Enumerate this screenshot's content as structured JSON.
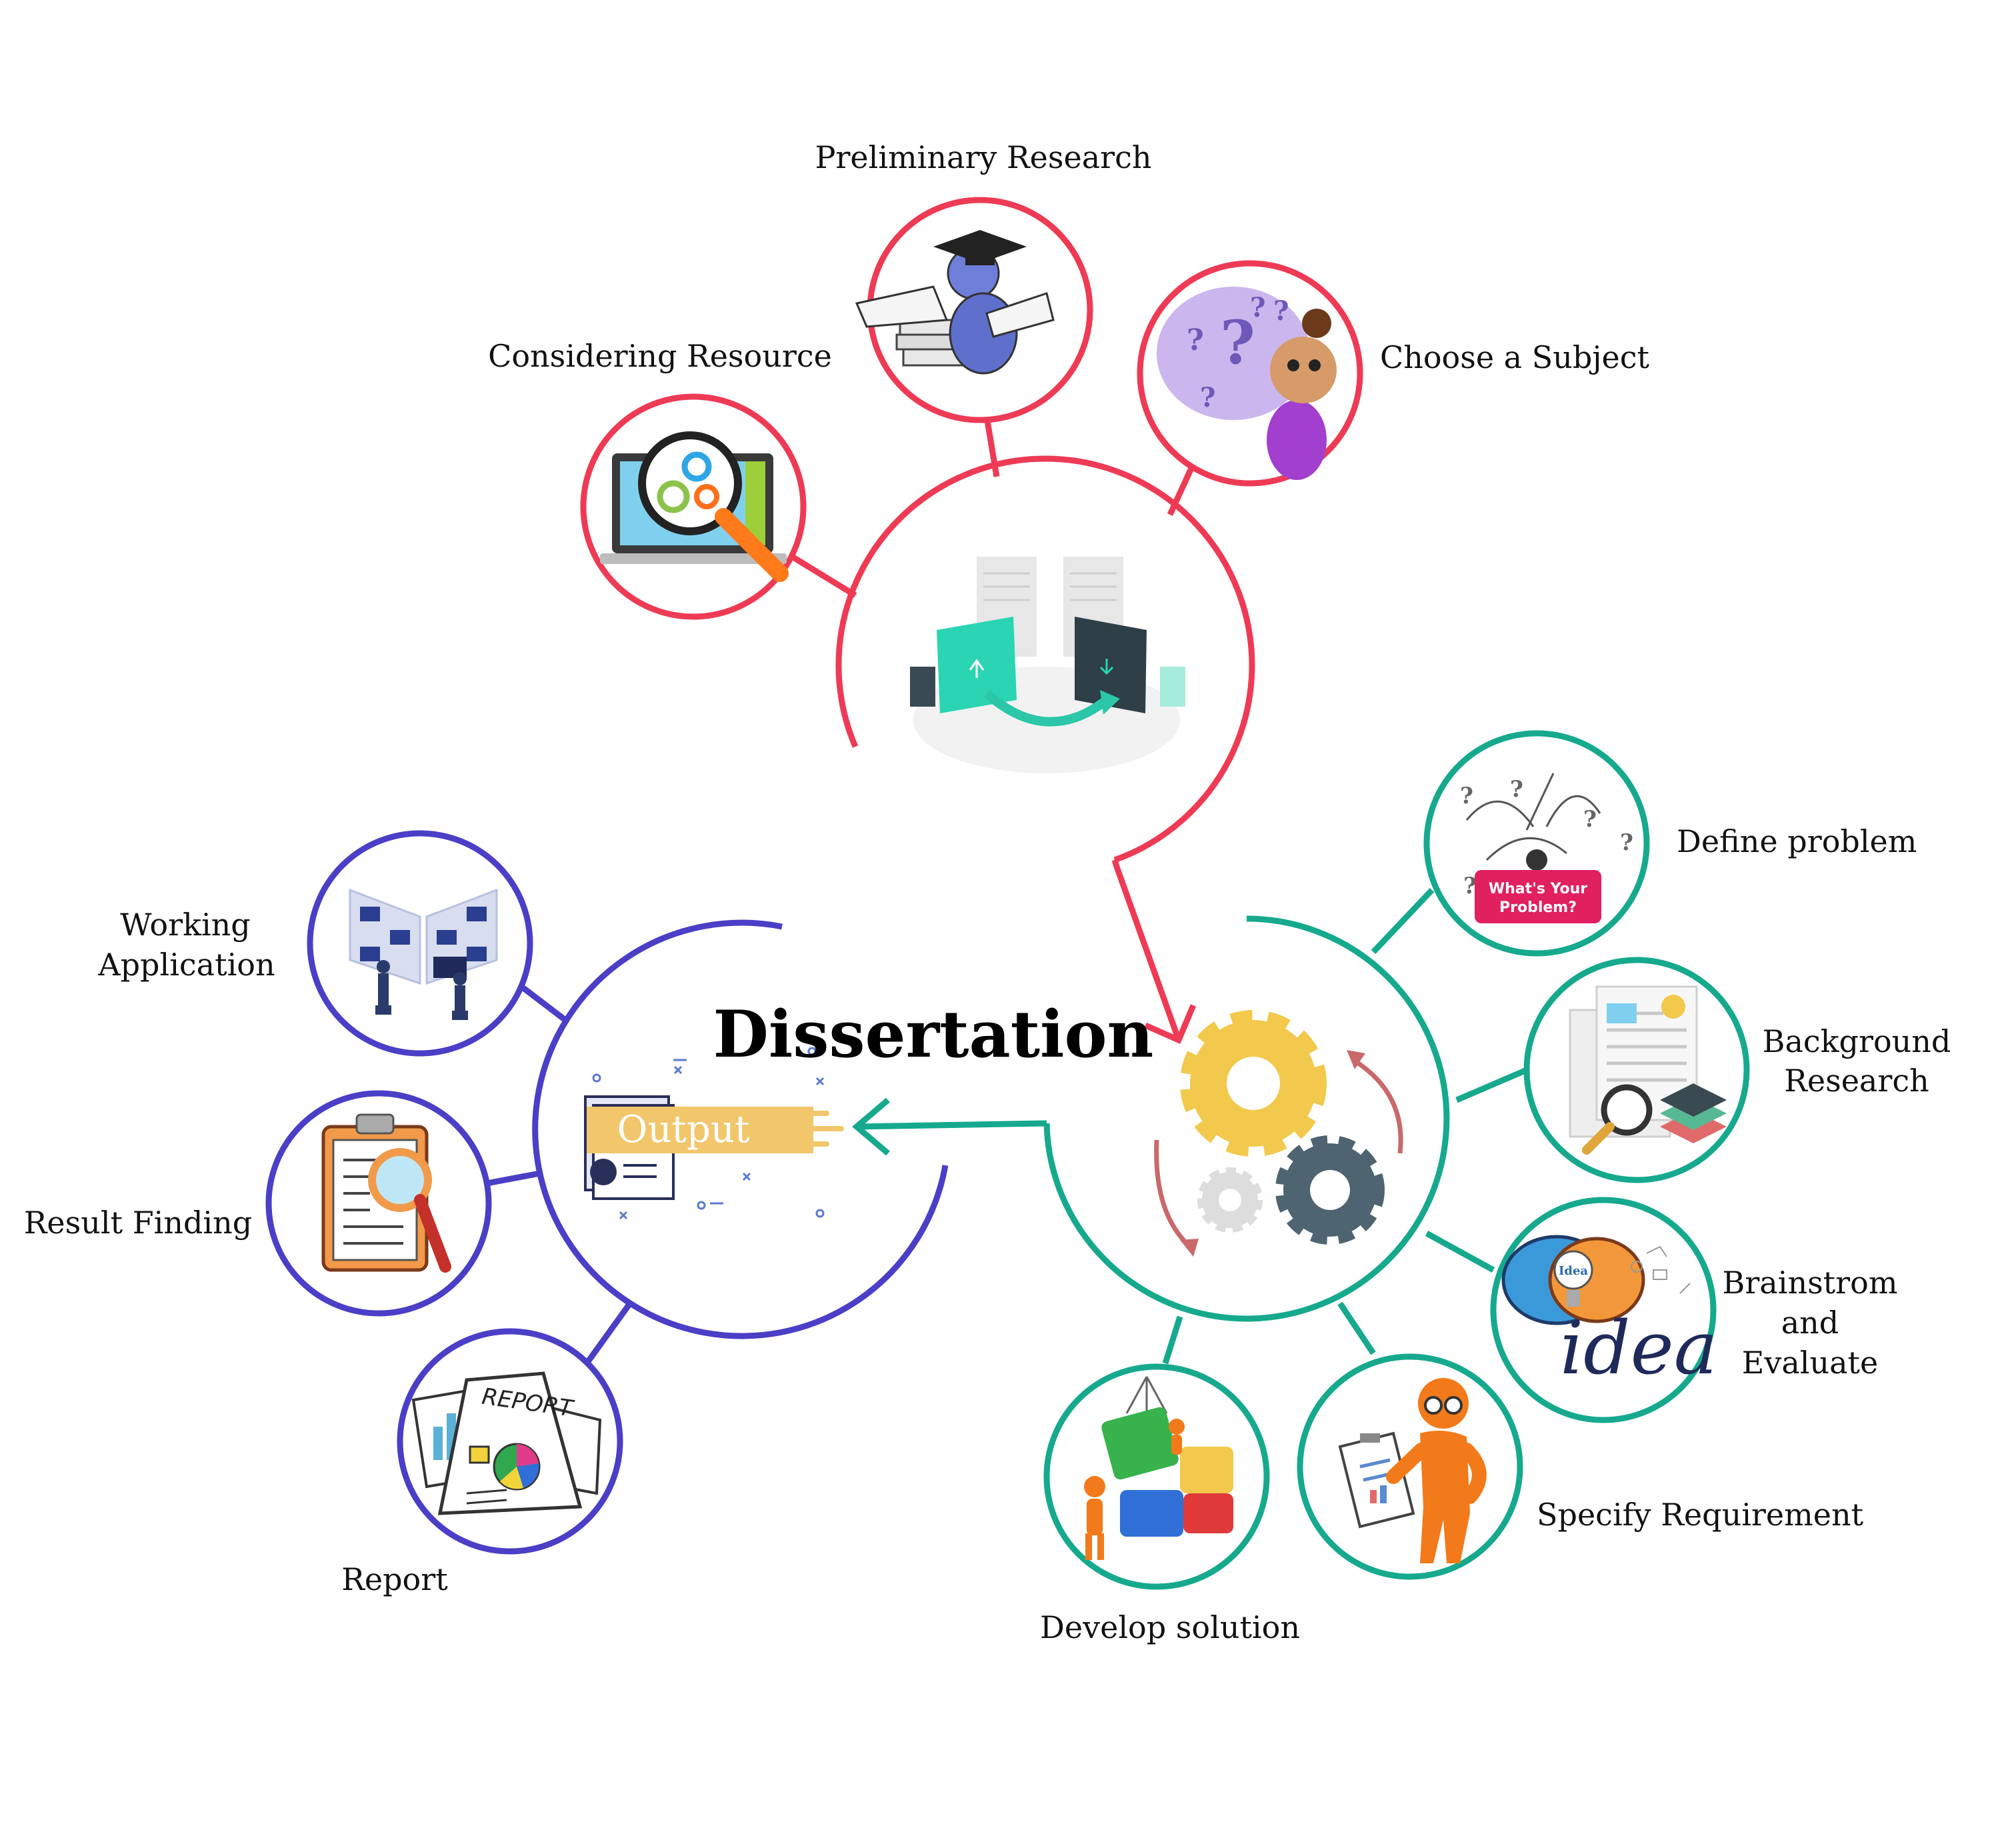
{
  "title": "Dissertation",
  "colors": {
    "research": "#ee3b55",
    "process": "#16a98e",
    "output": "#4a3fc6"
  },
  "hubs": {
    "research": {
      "icon": "folder-transfer-icon"
    },
    "process": {
      "icon": "gears-icon"
    },
    "output": {
      "icon": "output-document-icon",
      "badge": "Output"
    }
  },
  "nodes": {
    "preliminary_research": {
      "label": "Preliminary Research",
      "icon": "graduate-reading-books-icon"
    },
    "considering_resource": {
      "label": "Considering Resource",
      "icon": "laptop-magnifier-gears-icon"
    },
    "choose_subject": {
      "label": "Choose a Subject",
      "icon": "girl-question-marks-icon"
    },
    "define_problem": {
      "label": "Define problem",
      "icon": "question-arrows-icon",
      "badge": [
        "What's Your",
        "Problem?"
      ]
    },
    "background_research": {
      "label_lines": [
        "Background",
        "Research"
      ],
      "icon": "documents-magnifier-icon"
    },
    "brainstorm": {
      "label_lines": [
        "Brainstrom",
        "and",
        "Evaluate"
      ],
      "icon": "brain-lightbulb-icon",
      "badge": "Idea",
      "script": "idea"
    },
    "specify_requirement": {
      "label": "Specify Requirement",
      "icon": "person-clipboard-icon"
    },
    "develop_solution": {
      "label": "Develop solution",
      "icon": "puzzle-pieces-icon"
    },
    "working_application": {
      "label_lines": [
        "Working",
        "Application"
      ],
      "icon": "people-screens-icon"
    },
    "result_finding": {
      "label": "Result Finding",
      "icon": "clipboard-magnifier-icon"
    },
    "report": {
      "label": "Report",
      "icon": "report-papers-icon",
      "badge": "REPORT"
    }
  }
}
